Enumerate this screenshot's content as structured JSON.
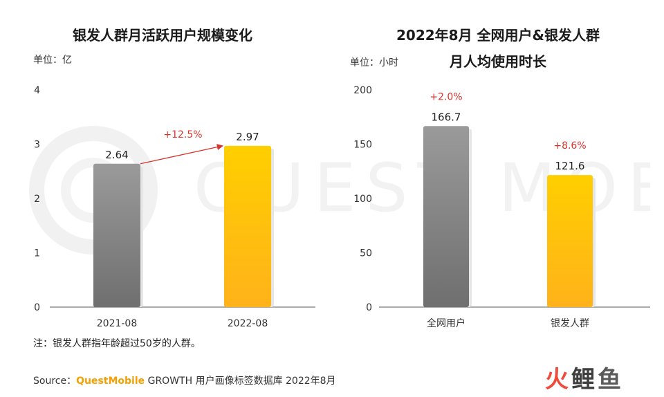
{
  "watermark": {
    "text": "QUEST MOBILE"
  },
  "chart_data": [
    {
      "type": "bar",
      "title": "银发人群月活跃用户规模变化",
      "unit_label": "单位：亿",
      "categories": [
        "2021-08",
        "2022-08"
      ],
      "values": [
        2.64,
        2.97
      ],
      "value_labels": [
        "2.64",
        "2.97"
      ],
      "ylim": [
        0,
        4
      ],
      "yticks": [
        0,
        1,
        2,
        3,
        4
      ],
      "grid": false,
      "bar_colors": [
        [
          "#9a9a9a",
          "#6f6f6f"
        ],
        [
          "#ffcf00",
          "#ffb21a"
        ]
      ],
      "growth_arrow": {
        "label": "+12.5%",
        "color": "#d9342b"
      }
    },
    {
      "type": "bar",
      "title_lines": [
        "2022年8月 全网用户&银发人群",
        "月人均使用时长"
      ],
      "unit_label": "单位：小时",
      "categories": [
        "全网用户",
        "银发人群"
      ],
      "values": [
        166.7,
        121.6
      ],
      "value_labels": [
        "166.7",
        "121.6"
      ],
      "growth_labels": [
        "+2.0%",
        "+8.6%"
      ],
      "growth_color": "#d9342b",
      "ylim": [
        0,
        200
      ],
      "yticks": [
        0,
        50,
        100,
        150,
        200
      ],
      "grid": false,
      "bar_colors": [
        [
          "#9a9a9a",
          "#6f6f6f"
        ],
        [
          "#ffcf00",
          "#ffb21a"
        ]
      ]
    }
  ],
  "note": "注：银发人群指年龄超过50岁的人群。",
  "source": {
    "prefix": "Source：",
    "brand": "QuestMobile",
    "rest": " GROWTH 用户画像标签数据库 2022年8月"
  },
  "logo": {
    "c1": "火",
    "c2": "鲤",
    "c3": "鱼"
  }
}
